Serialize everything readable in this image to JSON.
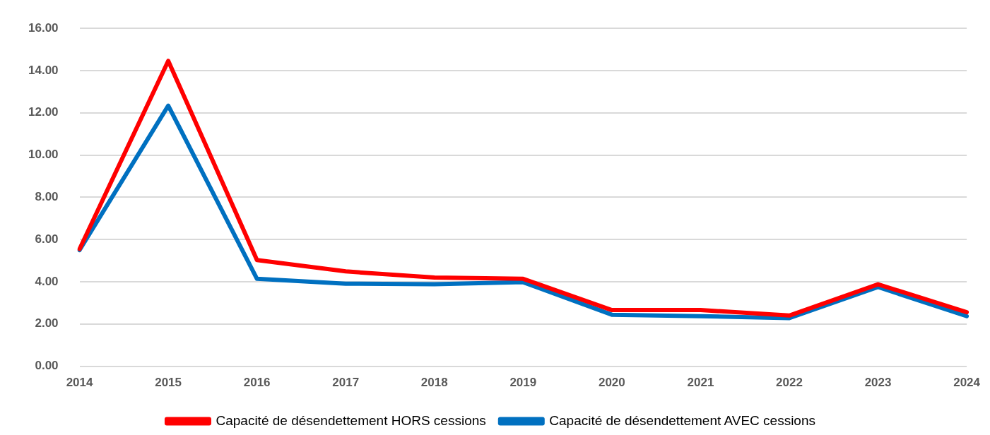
{
  "chart_data": {
    "type": "line",
    "categories": [
      "2014",
      "2015",
      "2016",
      "2017",
      "2018",
      "2019",
      "2020",
      "2021",
      "2022",
      "2023",
      "2024"
    ],
    "series": [
      {
        "name": "Capacité de désendettement HORS cessions",
        "color": "#ff0000",
        "values": [
          5.55,
          14.46,
          5.03,
          4.49,
          4.2,
          4.14,
          2.66,
          2.66,
          2.4,
          3.88,
          2.56
        ]
      },
      {
        "name": "Capacité de désendettement AVEC cessions",
        "color": "#0070c0",
        "values": [
          5.5,
          12.34,
          4.14,
          3.91,
          3.88,
          3.98,
          2.44,
          2.37,
          2.28,
          3.75,
          2.37
        ]
      }
    ],
    "ylim": [
      0,
      16
    ],
    "yticks": [
      {
        "value": 0,
        "label": "0.00"
      },
      {
        "value": 2,
        "label": "2.00"
      },
      {
        "value": 4,
        "label": "4.00"
      },
      {
        "value": 6,
        "label": "6.00"
      },
      {
        "value": 8,
        "label": "8.00"
      },
      {
        "value": 10,
        "label": "10.00"
      },
      {
        "value": 12,
        "label": "12.00"
      },
      {
        "value": 14,
        "label": "14.00"
      },
      {
        "value": 16,
        "label": "16.00"
      }
    ],
    "grid": "y",
    "legend": "bottom",
    "marker": "none",
    "line_style": "solid"
  }
}
